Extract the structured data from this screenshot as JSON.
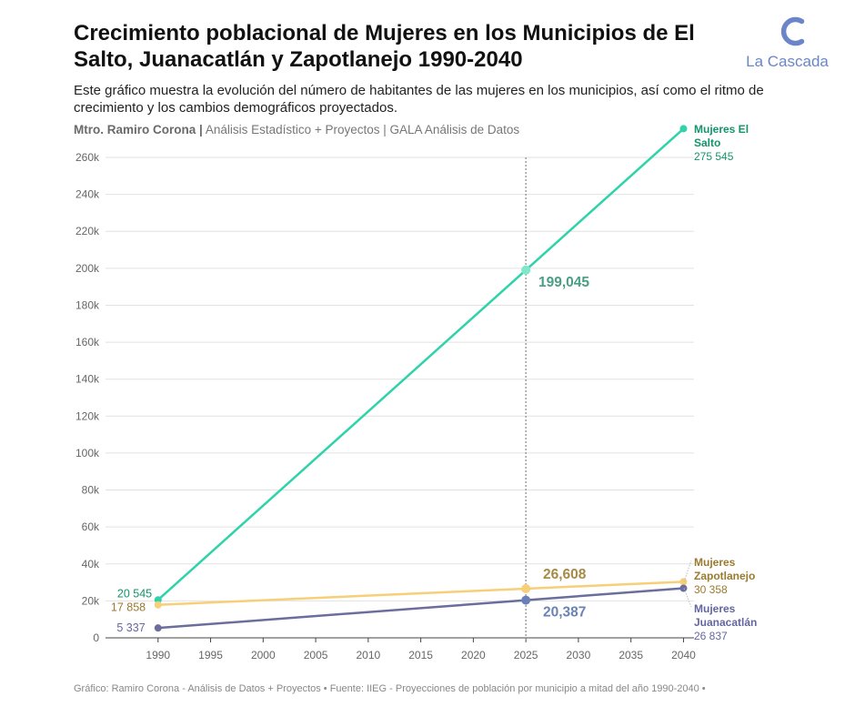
{
  "header": {
    "title": "Crecimiento poblacional de Mujeres en los Municipios de El Salto, Juanacatlán y Zapotlanejo 1990-2040",
    "subtitle": "Este gráfico muestra la evolución del número de habitantes de las mujeres en los municipios, así como el ritmo de crecimiento  y los cambios demográficos proyectados.",
    "author": "Mtro. Ramiro Corona |",
    "affiliation": "Análisis Estadístico + Proyectos | GALA Análisis de Datos"
  },
  "logo": {
    "text": "La Cascada",
    "color": "#6b86c8"
  },
  "footer": {
    "text": "Gráfico: Ramiro Corona - Análisis de Datos + Proyectos • Fuente: IIEG - Proyecciones de población por municipio a mitad del año 1990-2040 •"
  },
  "chart_data": {
    "type": "line",
    "xlim": [
      1985,
      2041
    ],
    "ylim": [
      0,
      260000
    ],
    "x_ticks": [
      1990,
      1995,
      2000,
      2005,
      2010,
      2015,
      2020,
      2025,
      2030,
      2035,
      2040
    ],
    "x_tick_labels": [
      "1990",
      "1995",
      "2000",
      "2005",
      "2010",
      "2015",
      "2020",
      "2025",
      "2030",
      "2035",
      "2040"
    ],
    "y_ticks": [
      0,
      20000,
      40000,
      60000,
      80000,
      100000,
      120000,
      140000,
      160000,
      180000,
      200000,
      220000,
      240000,
      260000
    ],
    "y_tick_labels": [
      "0",
      "20k",
      "40k",
      "60k",
      "80k",
      "100k",
      "120k",
      "140k",
      "160k",
      "180k",
      "200k",
      "220k",
      "240k",
      "260k"
    ],
    "grid": "horizontal",
    "reference_line_x": 2025,
    "series": [
      {
        "name": "Mujeres El Salto",
        "color": "#2ed3aa",
        "label_color": "#13946c",
        "highlight_color": "#7ee8c9",
        "x": [
          1990,
          2025,
          2040
        ],
        "values": [
          20545,
          199045,
          275545
        ],
        "start_label": "20 545",
        "mid_label": "199,045",
        "mid_label_color": "#4a9e84",
        "end_label": "275 545"
      },
      {
        "name": "Mujeres Zapotlanejo",
        "color": "#f6cf78",
        "label_color": "#9a7a2e",
        "highlight_color": "#f6cf78",
        "x": [
          1990,
          2025,
          2040
        ],
        "values": [
          17858,
          26608,
          30358
        ],
        "start_label": "17 858",
        "mid_label": "26,608",
        "mid_label_color": "#a88a45",
        "end_label": "30 358"
      },
      {
        "name": "Mujeres Juanacatlán",
        "color": "#6b6e9c",
        "label_color": "#6366a0",
        "highlight_color": "#6b7fb8",
        "x": [
          1990,
          2025,
          2040
        ],
        "values": [
          5337,
          20387,
          26837
        ],
        "start_label": "5 337",
        "mid_label": "20,387",
        "mid_label_color": "#6a82b4",
        "end_label": "26 837"
      }
    ]
  }
}
